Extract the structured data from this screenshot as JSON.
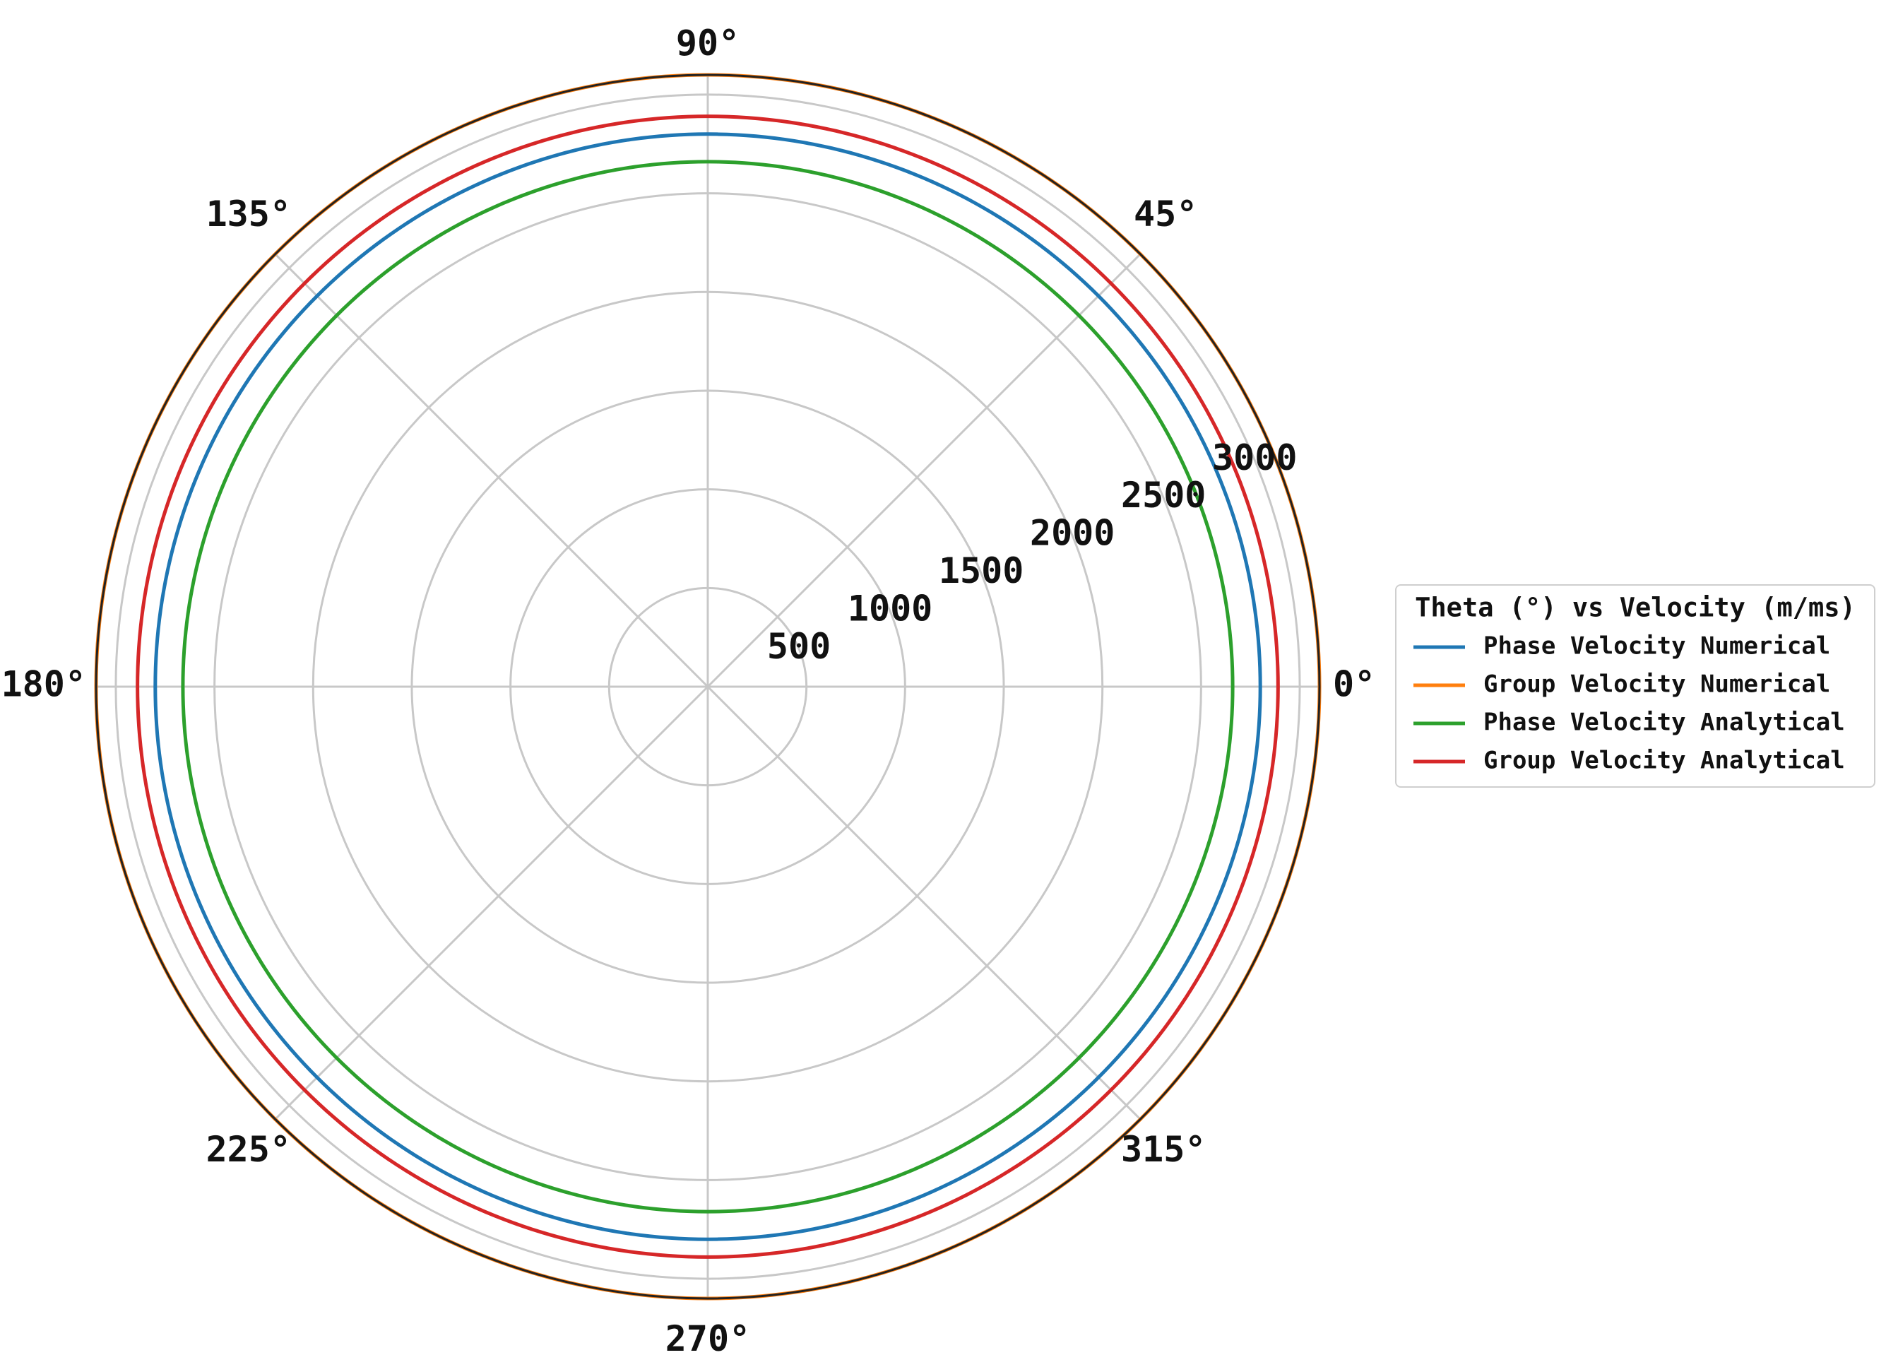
{
  "chart_data": {
    "type": "polar-line",
    "angle_unit": "degrees",
    "r_range": [
      0,
      3100
    ],
    "r_ticks": [
      500,
      1000,
      1500,
      2000,
      2500,
      3000
    ],
    "r_tick_labels": [
      "500",
      "1000",
      "1500",
      "2000",
      "2500",
      "3000"
    ],
    "theta_ticks": [
      0,
      45,
      90,
      135,
      180,
      225,
      270,
      315
    ],
    "theta_tick_labels": [
      "0°",
      "45°",
      "90°",
      "135°",
      "180°",
      "225°",
      "270°",
      "315°"
    ],
    "grid": true,
    "legend": {
      "title": "Theta (°) vs Velocity (m/ms)",
      "placement": "right"
    },
    "theta": [
      0,
      360
    ],
    "series": [
      {
        "name": "Phase Velocity Numerical",
        "color": "#1f77b4",
        "r": 2800
      },
      {
        "name": "Group Velocity Numerical",
        "color": "#ff7f0e",
        "r": 3100
      },
      {
        "name": "Phase Velocity Analytical",
        "color": "#2ca02c",
        "r": 2660
      },
      {
        "name": "Group Velocity Analytical",
        "color": "#d62728",
        "r": 2890
      }
    ],
    "colors": {
      "grid": "#c8c8c8",
      "frame": "#222222"
    }
  }
}
